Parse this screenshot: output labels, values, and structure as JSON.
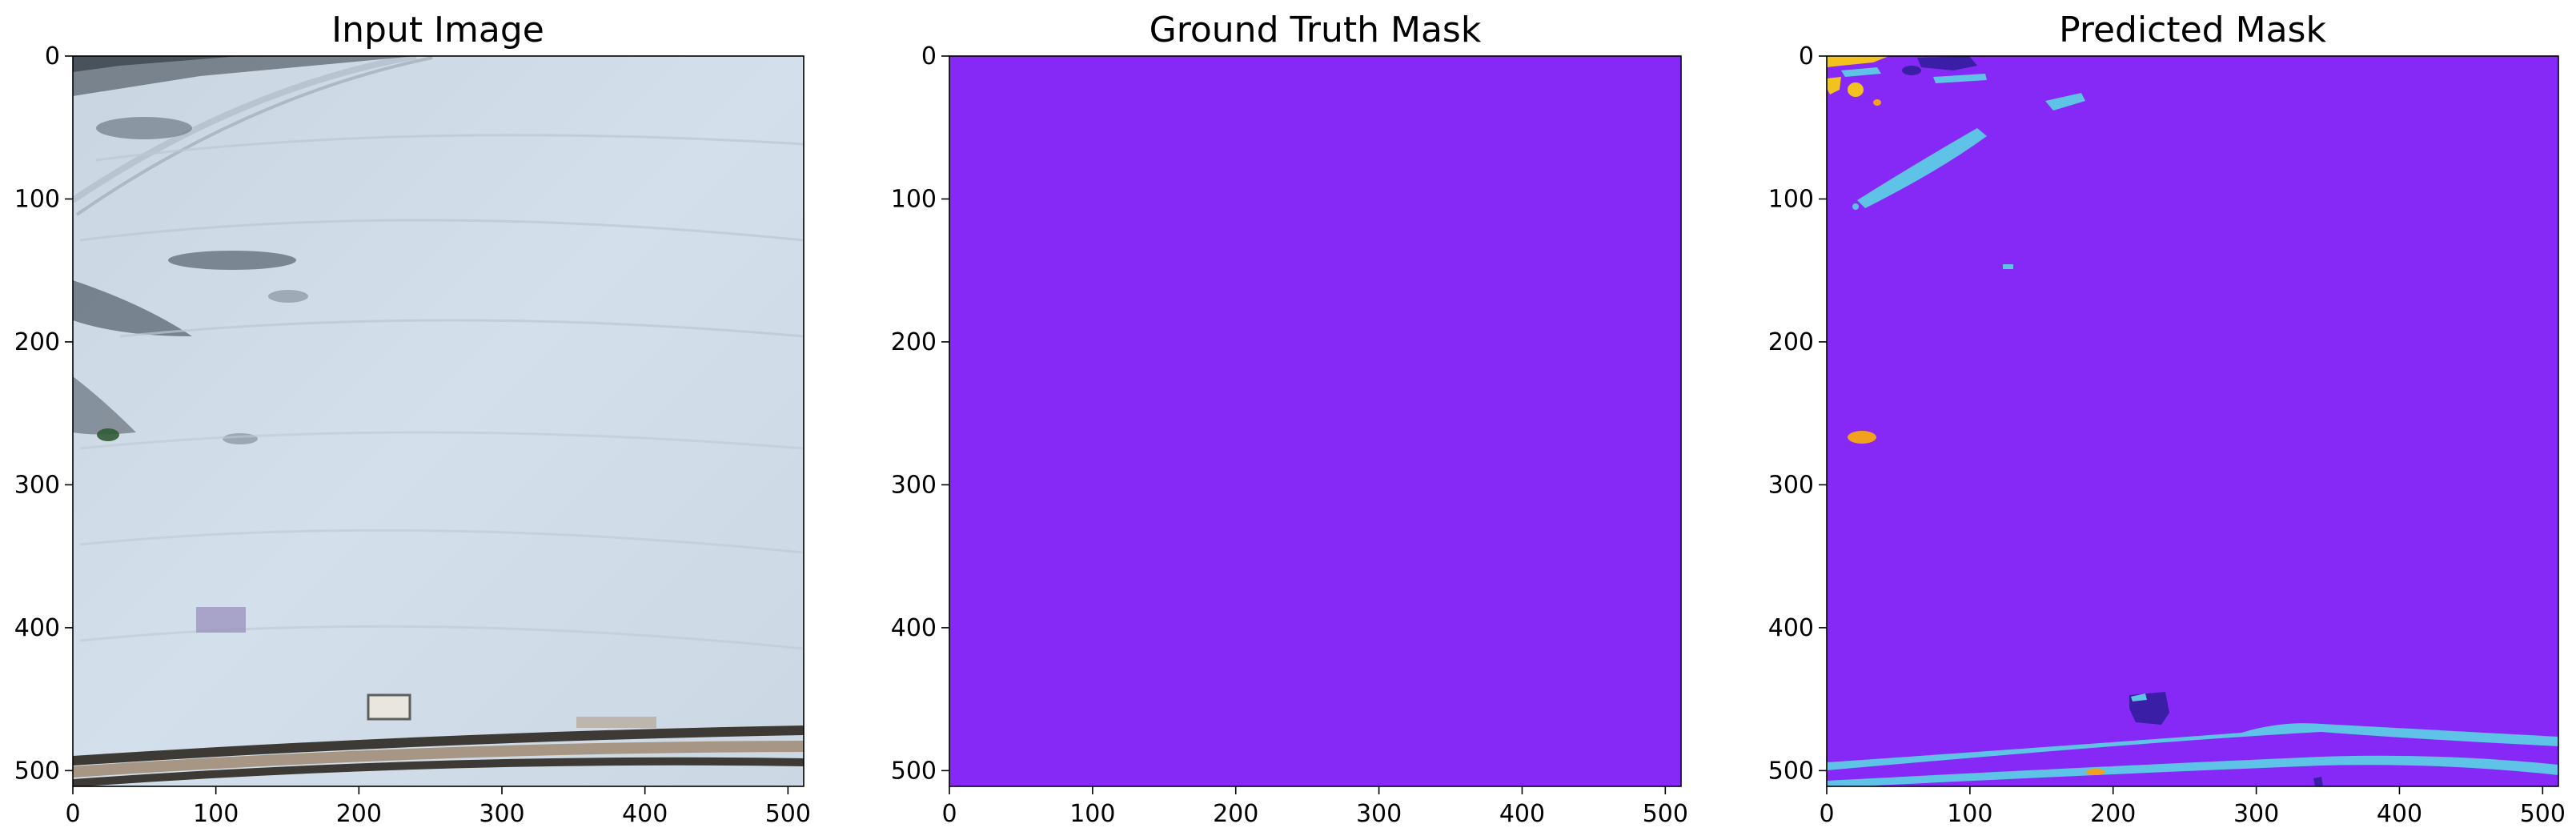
{
  "chart_data": [
    {
      "type": "heatmap",
      "title": "Input Image",
      "content": "aerial image",
      "xlim": [
        0,
        511
      ],
      "ylim": [
        511,
        0
      ],
      "xticks": [
        0,
        100,
        200,
        300,
        400,
        500
      ],
      "yticks": [
        0,
        100,
        200,
        300,
        400,
        500
      ]
    },
    {
      "type": "heatmap",
      "title": "Ground Truth Mask",
      "content": "uniform single-class mask",
      "fill_color": "#8629f7",
      "xlim": [
        0,
        511
      ],
      "ylim": [
        511,
        0
      ],
      "xticks": [
        0,
        100,
        200,
        300,
        400,
        500
      ],
      "yticks": [
        0,
        100,
        200,
        300,
        400,
        500
      ]
    },
    {
      "type": "heatmap",
      "title": "Predicted Mask",
      "content": "segmentation mask",
      "colors": {
        "background": "#8629f7",
        "cyan_class": "#5fc3e8",
        "dark_class": "#3a1ea6",
        "yellow_class": "#f2c21e",
        "orange_class": "#f0a21e"
      },
      "xlim": [
        0,
        511
      ],
      "ylim": [
        511,
        0
      ],
      "xticks": [
        0,
        100,
        200,
        300,
        400,
        500
      ],
      "yticks": [
        0,
        100,
        200,
        300,
        400,
        500
      ]
    }
  ]
}
